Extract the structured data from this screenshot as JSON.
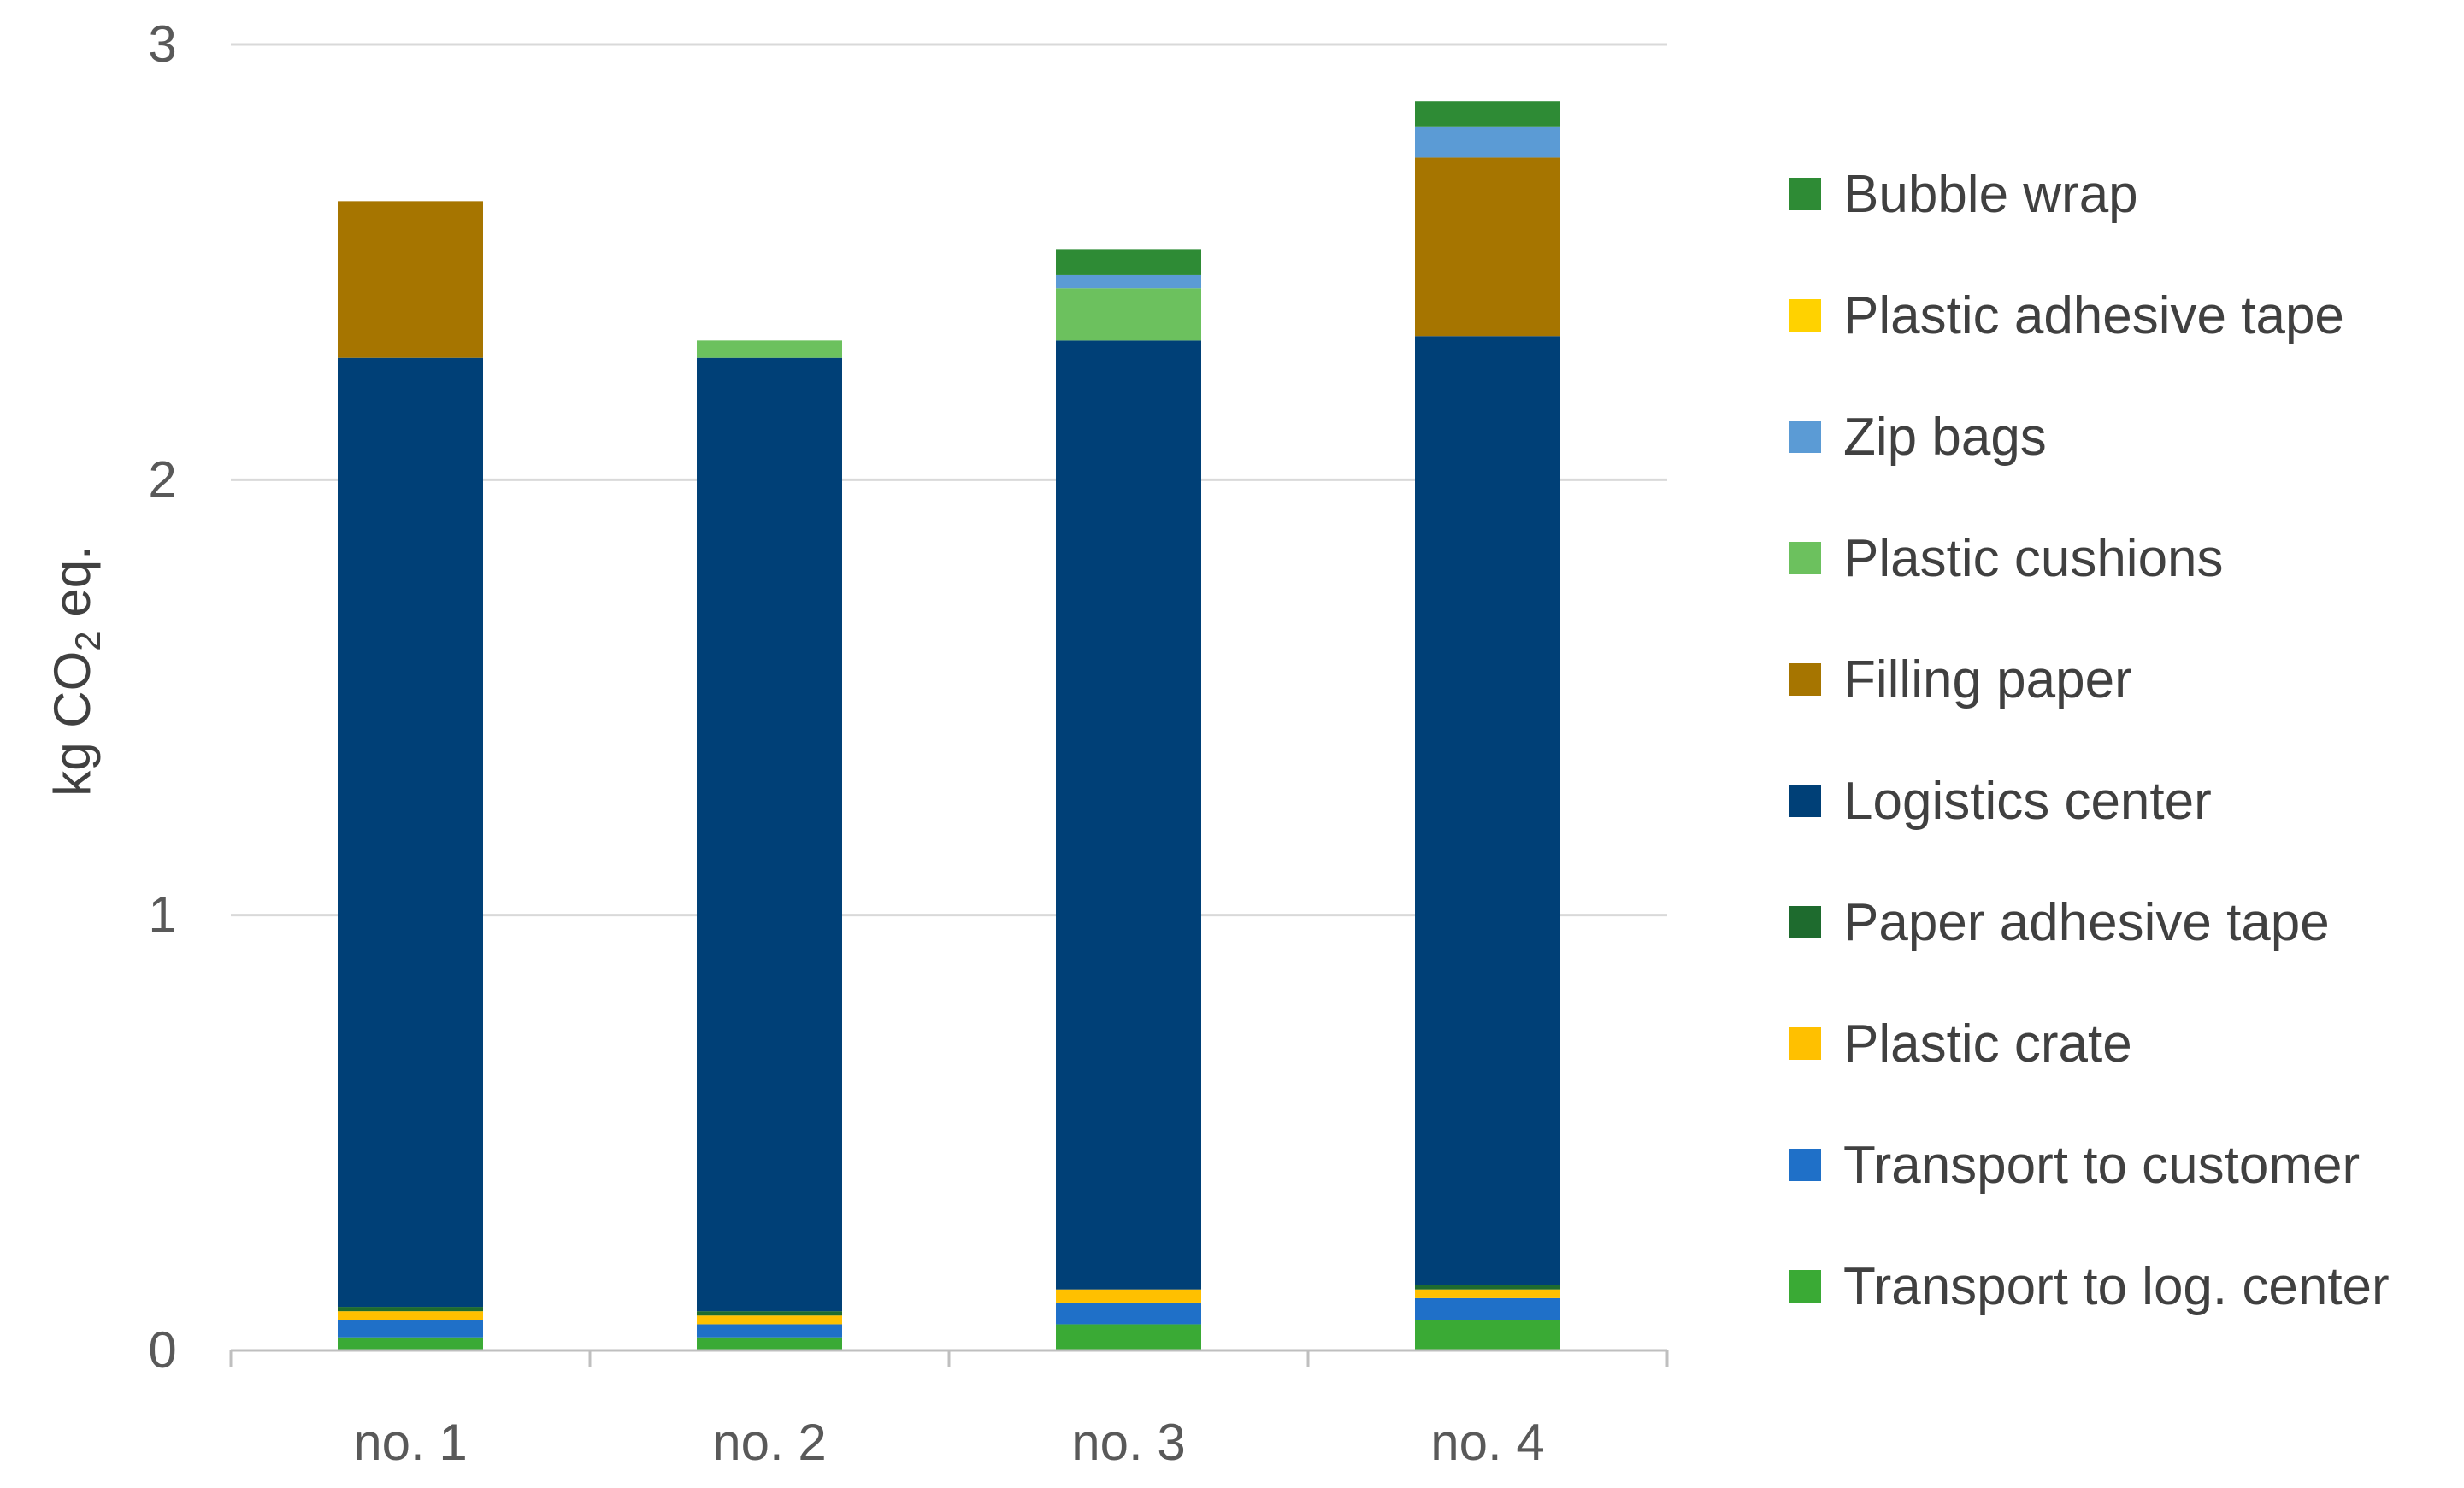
{
  "chart_data": {
    "type": "bar",
    "stacked": true,
    "categories": [
      "no. 1",
      "no. 2",
      "no. 3",
      "no. 4"
    ],
    "ylabel": {
      "prefix": "kg CO",
      "subscript": "2",
      "suffix": " eq."
    },
    "ylim": [
      0,
      3
    ],
    "yticks": [
      "0",
      "1",
      "2",
      "3"
    ],
    "grid": true,
    "legend_position": "right",
    "series": [
      {
        "name": "Transport to log. center",
        "color": "#3AAA35",
        "values": [
          0.03,
          0.03,
          0.06,
          0.07
        ]
      },
      {
        "name": "Transport to customer",
        "color": "#1F70C8",
        "values": [
          0.04,
          0.03,
          0.05,
          0.05
        ]
      },
      {
        "name": "Plastic crate",
        "color": "#FFC000",
        "values": [
          0.02,
          0.02,
          0.03,
          0.02
        ]
      },
      {
        "name": "Paper adhesive tape",
        "color": "#1E6B2E",
        "values": [
          0.01,
          0.01,
          0.0,
          0.01
        ]
      },
      {
        "name": "Logistics center",
        "color": "#004077",
        "values": [
          2.18,
          2.19,
          2.18,
          2.18
        ]
      },
      {
        "name": "Filling paper",
        "color": "#A67500",
        "values": [
          0.36,
          0.0,
          0.0,
          0.41
        ]
      },
      {
        "name": "Plastic cushions",
        "color": "#6CC15E",
        "values": [
          0.0,
          0.04,
          0.12,
          0.0
        ]
      },
      {
        "name": "Zip bags",
        "color": "#5B9BD5",
        "values": [
          0.0,
          0.0,
          0.03,
          0.07
        ]
      },
      {
        "name": "Plastic adhesive tape",
        "color": "#FFD200",
        "values": [
          0.0,
          0.0,
          0.0,
          0.0
        ]
      },
      {
        "name": "Bubble wrap",
        "color": "#2E8B35",
        "values": [
          0.0,
          0.0,
          0.06,
          0.06
        ]
      }
    ],
    "legend_order": [
      "Bubble wrap",
      "Plastic adhesive tape",
      "Zip bags",
      "Plastic cushions",
      "Filling paper",
      "Logistics center",
      "Paper adhesive tape",
      "Plastic crate",
      "Transport to customer",
      "Transport to log. center"
    ]
  }
}
